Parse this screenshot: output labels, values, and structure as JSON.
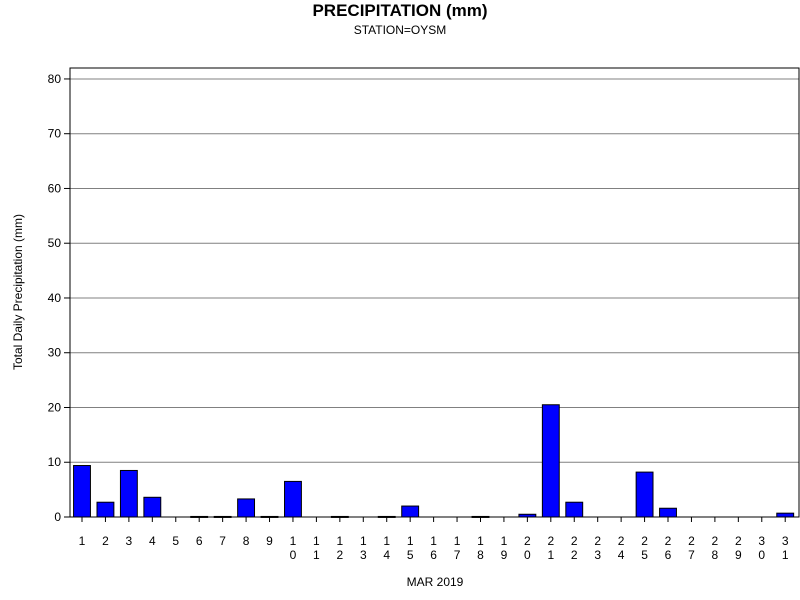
{
  "chart_data": {
    "type": "bar",
    "title": "PRECIPITATION (mm)",
    "subtitle": "STATION=OYSM",
    "xlabel": "MAR 2019",
    "ylabel": "Total Daily Precipitation (mm)",
    "ylim": [
      0,
      82
    ],
    "yticks": [
      0,
      10,
      20,
      30,
      40,
      50,
      60,
      70,
      80
    ],
    "grid": true,
    "bar_color": "#0000ff",
    "categories": [
      "1",
      "2",
      "3",
      "4",
      "5",
      "6",
      "7",
      "8",
      "9",
      "10",
      "11",
      "12",
      "13",
      "14",
      "15",
      "16",
      "17",
      "18",
      "19",
      "20",
      "21",
      "22",
      "23",
      "24",
      "25",
      "26",
      "27",
      "28",
      "29",
      "30",
      "31"
    ],
    "values": [
      9.4,
      2.7,
      8.5,
      3.6,
      0,
      0.1,
      0.1,
      3.3,
      0.1,
      6.5,
      0,
      0.1,
      0,
      0.1,
      2.0,
      0,
      0,
      0.1,
      0,
      0.5,
      20.5,
      2.7,
      0,
      0,
      8.2,
      1.6,
      0,
      0,
      0,
      0,
      0.7
    ]
  }
}
